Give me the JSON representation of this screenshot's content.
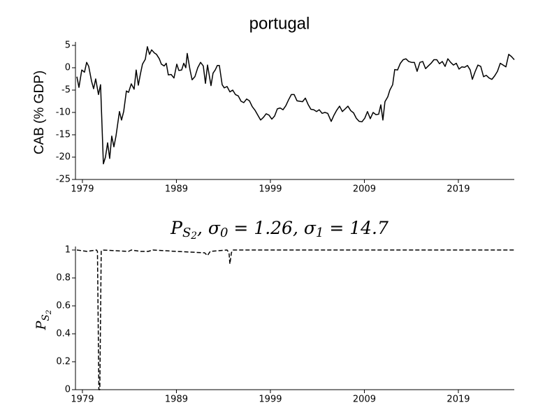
{
  "chart_data": [
    {
      "type": "line",
      "title": "portugal",
      "ylabel": "CAB (% GDP)",
      "color": "#000000",
      "line_style": "solid",
      "xlim": [
        1978.26,
        2024.95
      ],
      "xticks": [
        1979,
        1989,
        1999,
        2009,
        2019
      ],
      "ylim": [
        -25,
        5
      ],
      "yticks": [
        -25,
        -20,
        -15,
        -10,
        -5,
        0,
        5
      ],
      "x": [
        1978.41,
        1978.63,
        1978.93,
        1979.22,
        1979.45,
        1979.67,
        1979.97,
        1980.19,
        1980.41,
        1980.71,
        1980.93,
        1981.23,
        1981.45,
        1981.68,
        1981.9,
        1982.12,
        1982.35,
        1982.57,
        1982.94,
        1983.16,
        1983.39,
        1983.68,
        1983.91,
        1984.2,
        1984.5,
        1984.72,
        1984.95,
        1985.17,
        1985.39,
        1985.69,
        1985.91,
        1986.14,
        1986.36,
        1986.66,
        1986.88,
        1987.18,
        1987.4,
        1987.7,
        1987.92,
        1988.14,
        1988.44,
        1988.74,
        1989.04,
        1989.26,
        1989.56,
        1989.78,
        1990.0,
        1990.15,
        1990.45,
        1990.67,
        1990.97,
        1991.27,
        1991.57,
        1991.86,
        1992.09,
        1992.31,
        1992.68,
        1992.9,
        1993.13,
        1993.35,
        1993.57,
        1993.87,
        1994.09,
        1994.39,
        1994.69,
        1994.99,
        1995.28,
        1995.58,
        1995.88,
        1996.17,
        1996.47,
        1996.77,
        1997.07,
        1997.36,
        1997.66,
        1997.96,
        1998.26,
        1998.55,
        1998.85,
        1999.15,
        1999.45,
        1999.74,
        2000.04,
        2000.34,
        2000.64,
        2000.93,
        2001.23,
        2001.53,
        2001.83,
        2002.12,
        2002.42,
        2002.72,
        2003.01,
        2003.31,
        2003.61,
        2003.91,
        2004.2,
        2004.5,
        2004.8,
        2005.1,
        2005.47,
        2005.77,
        2006.06,
        2006.36,
        2006.66,
        2006.96,
        2007.25,
        2007.55,
        2007.85,
        2008.14,
        2008.44,
        2008.74,
        2009.04,
        2009.33,
        2009.63,
        2009.93,
        2010.23,
        2010.52,
        2010.75,
        2010.97,
        2011.19,
        2011.49,
        2011.71,
        2012.01,
        2012.23,
        2012.53,
        2012.83,
        2013.13,
        2013.42,
        2013.72,
        2014.02,
        2014.32,
        2014.61,
        2014.91,
        2015.21,
        2015.51,
        2015.8,
        2016.1,
        2016.4,
        2016.7,
        2016.99,
        2017.29,
        2017.59,
        2017.88,
        2018.18,
        2018.48,
        2018.78,
        2019.07,
        2019.37,
        2019.67,
        2019.97,
        2020.26,
        2020.49,
        2020.78,
        2021.08,
        2021.38,
        2021.68,
        2021.97,
        2022.27,
        2022.57,
        2022.87,
        2023.16,
        2023.46,
        2023.76,
        2024.06,
        2024.36,
        2024.65,
        2024.95
      ],
      "values": [
        -2,
        -4.4,
        -0.5,
        -1,
        1.2,
        0.3,
        -3,
        -4.7,
        -2.5,
        -6,
        -3.8,
        -21.5,
        -20,
        -16.8,
        -20.3,
        -15.3,
        -17.7,
        -15.3,
        -9.8,
        -11.7,
        -9.8,
        -5.2,
        -5.5,
        -3.6,
        -4.8,
        -0.5,
        -3.9,
        -1.4,
        0.8,
        1.9,
        4.7,
        3,
        4,
        3.3,
        3,
        2,
        0.8,
        0.4,
        1,
        -1.6,
        -1.5,
        -2.3,
        0.8,
        -0.6,
        -0.5,
        1,
        0,
        3.2,
        -0.5,
        -2.7,
        -2,
        0,
        1.2,
        0.4,
        -3.5,
        0.6,
        -4,
        -1.2,
        -0.5,
        0.5,
        0.5,
        -3.8,
        -4.5,
        -4.2,
        -5.4,
        -5,
        -6,
        -6.3,
        -7.5,
        -7.8,
        -7,
        -7.4,
        -8.7,
        -9.5,
        -10.6,
        -11.7,
        -11.1,
        -10.3,
        -10.6,
        -11.5,
        -10.8,
        -9.2,
        -9,
        -9.4,
        -8.5,
        -7.2,
        -6,
        -6,
        -7.4,
        -7.5,
        -7.6,
        -6.8,
        -8.2,
        -9.3,
        -9.4,
        -9.8,
        -9.4,
        -10.2,
        -10,
        -10.2,
        -12,
        -10.6,
        -9.5,
        -8.6,
        -9.8,
        -9.2,
        -8.6,
        -9.6,
        -10.1,
        -11.3,
        -12,
        -12.1,
        -11.3,
        -9.8,
        -11.4,
        -10,
        -10.5,
        -10.4,
        -8.3,
        -11.7,
        -7.6,
        -6.5,
        -5,
        -3.8,
        -0.4,
        -0.5,
        1,
        1.8,
        2,
        1.4,
        1.2,
        1.2,
        -0.8,
        1.2,
        1.4,
        -0.2,
        0.4,
        1,
        1.8,
        1.8,
        0.9,
        1.4,
        0.3,
        2,
        1.2,
        0.6,
        1,
        -0.3,
        0.2,
        0.1,
        0.5,
        -0.5,
        -2.6,
        -0.9,
        0.6,
        0.3,
        -2,
        -1.7,
        -2.3,
        -2.6,
        -1.8,
        -0.8,
        1,
        0.6,
        0.2,
        3,
        2.5,
        1.8
      ]
    },
    {
      "type": "line",
      "title_parts": [
        "P",
        "S",
        "2",
        ", σ",
        "0",
        " = 1.26, σ",
        "1",
        " = 14.7"
      ],
      "title_styles": [
        "normal",
        "sub",
        "subsub",
        "normal",
        "sub",
        "normal",
        "sub",
        "normal"
      ],
      "ylabel_parts": [
        "P",
        "S",
        "2"
      ],
      "ylabel_styles": [
        "normal",
        "sub",
        "subsub"
      ],
      "color": "#000000",
      "line_style": "dashed",
      "xlim": [
        1978.26,
        2024.95
      ],
      "xticks": [
        1979,
        1989,
        1999,
        2009,
        2019
      ],
      "ylim": [
        0,
        1
      ],
      "yticks": [
        0,
        0.2,
        0.4,
        0.6,
        0.8,
        1
      ],
      "x": [
        1978.41,
        1979.5,
        1980.5,
        1980.6,
        1980.75,
        1980.85,
        1981.0,
        1981.1,
        1983.9,
        1984.2,
        1985.2,
        1986.0,
        1986.5,
        1989.0,
        1992.0,
        1992.3,
        1992.6,
        1994.39,
        1994.6,
        1994.69,
        1994.85,
        1995.0,
        2024.95
      ],
      "values": [
        1,
        0.99,
        1,
        0.99,
        0,
        0,
        0.99,
        1,
        0.99,
        1,
        0.99,
        0.99,
        1,
        0.99,
        0.98,
        0.96,
        0.99,
        1,
        0.98,
        0.9,
        0.98,
        1,
        1
      ]
    }
  ]
}
